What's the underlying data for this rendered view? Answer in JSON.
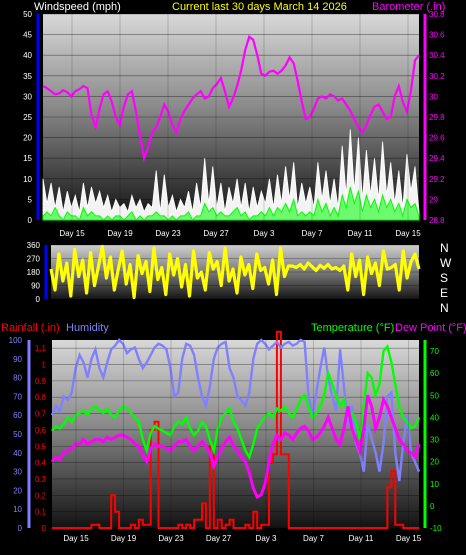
{
  "header": {
    "left_label": "Windspeed (mph)",
    "center_label": "Current last 30 days March 14 2026",
    "right_label": "Barometer (.in)"
  },
  "lower_header": {
    "rainfall_label": "Rainfall (.in)",
    "humidity_label": "Humidity",
    "temperature_label": "Temperature (°F)",
    "dewpoint_label": "Dew Point (°F)"
  },
  "direction_letters": [
    "N",
    "W",
    "S",
    "E",
    "N"
  ],
  "x_ticks": [
    "Day 15",
    "Day 19",
    "Day 23",
    "Day 27",
    "Day 3",
    "Day 7",
    "Day 11",
    "Day 15"
  ],
  "colors": {
    "wind": "#ffffff",
    "gust": "#00ff00",
    "barometer": "#ff00ff",
    "direction": "#ffff00",
    "rain": "#ff0000",
    "humidity": "#8080ff",
    "temperature": "#00ff00",
    "dewpoint": "#ff00ff",
    "wind_axis": "#0000ff",
    "rain_axis": "#ff0000",
    "humidity_axis": "#8080ff",
    "temp_axis": "#00ff00"
  },
  "chart_data": [
    {
      "type": "line",
      "panel": "wind-barometer",
      "x_ticks": [
        "Day 15",
        "Day 19",
        "Day 23",
        "Day 27",
        "Day 3",
        "Day 7",
        "Day 11",
        "Day 15"
      ],
      "y_left": {
        "label": "Windspeed (mph)",
        "ticks": [
          0,
          5,
          10,
          15,
          20,
          25,
          30,
          35,
          40,
          45,
          50
        ],
        "range": [
          0,
          50
        ]
      },
      "y_right": {
        "label": "Barometer (.in)",
        "ticks": [
          28.8,
          29,
          29.2,
          29.4,
          29.6,
          29.8,
          30,
          30.2,
          30.4,
          30.6,
          30.8
        ],
        "range": [
          28.8,
          30.8
        ]
      },
      "series": [
        {
          "name": "Windspeed",
          "axis": "left",
          "values": [
            10,
            4,
            9,
            3,
            8,
            2,
            7,
            3,
            6,
            2,
            9,
            3,
            8,
            4,
            7,
            3,
            6,
            2,
            5,
            3,
            4,
            2,
            6,
            3,
            5,
            2,
            4,
            3,
            12,
            2,
            11,
            3,
            6,
            2,
            5,
            3,
            7,
            2,
            9,
            3,
            15,
            4,
            13,
            3,
            9,
            2,
            8,
            4,
            10,
            3,
            9,
            2,
            8,
            3,
            7,
            4,
            10,
            3,
            11,
            4,
            13,
            5,
            14,
            3,
            9,
            4,
            8,
            3,
            14,
            5,
            12,
            4,
            10,
            3,
            18,
            6,
            22,
            7,
            20,
            5,
            17,
            6,
            15,
            5,
            19,
            6,
            14,
            4,
            12,
            3,
            16,
            7,
            13,
            2
          ]
        },
        {
          "name": "Gust",
          "axis": "left",
          "values": [
            1,
            2,
            1,
            3,
            1,
            0,
            2,
            1,
            1,
            0,
            3,
            1,
            2,
            1,
            1,
            0,
            1,
            0,
            1,
            1,
            0,
            1,
            2,
            0,
            1,
            0,
            1,
            1,
            2,
            1,
            1,
            0,
            1,
            0,
            1,
            1,
            2,
            0,
            1,
            1,
            4,
            2,
            3,
            1,
            2,
            1,
            1,
            2,
            3,
            1,
            2,
            0,
            1,
            1,
            2,
            1,
            3,
            1,
            3,
            2,
            4,
            2,
            5,
            1,
            2,
            1,
            2,
            1,
            5,
            2,
            4,
            1,
            3,
            1,
            6,
            3,
            8,
            4,
            7,
            2,
            6,
            3,
            5,
            2,
            6,
            3,
            5,
            2,
            4,
            1,
            5,
            3,
            4,
            1
          ]
        },
        {
          "name": "Barometer",
          "axis": "right",
          "values": [
            30.1,
            30.08,
            30.05,
            30.02,
            30.03,
            30.06,
            30.04,
            30.0,
            30.05,
            30.07,
            30.1,
            30.08,
            29.82,
            29.7,
            29.88,
            30.02,
            30.05,
            29.95,
            29.8,
            29.72,
            29.9,
            30.02,
            30.05,
            29.85,
            29.62,
            29.4,
            29.5,
            29.65,
            29.7,
            29.8,
            29.92,
            29.85,
            29.72,
            29.65,
            29.78,
            29.86,
            29.92,
            29.98,
            30.02,
            30.05,
            29.98,
            30.0,
            30.08,
            30.12,
            30.18,
            30.05,
            29.9,
            29.98,
            30.1,
            30.25,
            30.45,
            30.58,
            30.55,
            30.4,
            30.22,
            30.2,
            30.24,
            30.25,
            30.22,
            30.25,
            30.3,
            30.38,
            30.32,
            30.15,
            29.95,
            29.78,
            29.8,
            29.88,
            29.98,
            30.0,
            29.98,
            30.02,
            30.0,
            29.96,
            29.98,
            29.92,
            29.86,
            29.78,
            29.7,
            29.65,
            29.72,
            29.82,
            29.9,
            29.92,
            29.85,
            29.78,
            29.8,
            30.0,
            30.1,
            29.95,
            29.85,
            30.05,
            30.35,
            30.4
          ]
        }
      ]
    },
    {
      "type": "line",
      "panel": "wind-direction",
      "y_left": {
        "ticks": [
          0,
          90,
          180,
          270,
          360
        ],
        "range": [
          0,
          360
        ]
      },
      "series": [
        {
          "name": "Wind direction",
          "values": [
            200,
            60,
            300,
            120,
            240,
            20,
            330,
            150,
            260,
            40,
            310,
            90,
            220,
            350,
            140,
            280,
            60,
            200,
            320,
            100,
            230,
            10,
            290,
            170,
            250,
            50,
            340,
            130,
            210,
            30,
            300,
            160,
            270,
            80,
            230,
            20,
            320,
            140,
            180,
            60,
            310,
            200,
            250,
            90,
            340,
            120,
            200,
            40,
            280,
            160,
            230,
            70,
            300,
            190,
            210,
            100,
            260,
            30,
            340,
            150,
            220,
            220,
            210,
            230,
            200,
            240,
            215,
            190,
            225,
            205,
            230,
            200,
            210,
            190,
            220,
            60,
            300,
            150,
            260,
            30,
            280,
            170,
            240,
            90,
            320,
            200,
            210,
            230,
            60,
            320,
            140,
            250,
            300,
            200
          ]
        }
      ]
    },
    {
      "type": "line",
      "panel": "rain-humidity-temperature",
      "x_ticks": [
        "Day 15",
        "Day 19",
        "Day 23",
        "Day 27",
        "Day 3",
        "Day 7",
        "Day 11",
        "Day 15"
      ],
      "y_rain": {
        "label": "Rainfall (.in)",
        "ticks": [
          0,
          0.1,
          0.2,
          0.3,
          0.4,
          0.5,
          0.6,
          0.7,
          0.8,
          0.9,
          1,
          1.1
        ],
        "range": [
          0,
          1.15
        ]
      },
      "y_humidity": {
        "label": "Humidity",
        "ticks": [
          0,
          10,
          20,
          30,
          40,
          50,
          60,
          70,
          80,
          90,
          100
        ],
        "range": [
          0,
          100
        ]
      },
      "y_temp": {
        "label": "Temperature (°F)",
        "ticks": [
          -10,
          0,
          10,
          20,
          30,
          40,
          50,
          60,
          70
        ],
        "range": [
          -10,
          75
        ]
      },
      "series": [
        {
          "name": "Rainfall",
          "axis": "rain",
          "values": [
            0,
            0,
            0,
            0,
            0,
            0,
            0,
            0,
            0,
            0,
            0.02,
            0.02,
            0,
            0,
            0,
            0.2,
            0.1,
            0,
            0,
            0,
            0.02,
            0,
            0.05,
            0.02,
            0.02,
            0.6,
            0.65,
            0,
            0,
            0,
            0,
            0,
            0.02,
            0,
            0.02,
            0,
            0.05,
            0.05,
            0.15,
            0,
            0.5,
            0,
            0.05,
            0,
            0.02,
            0.05,
            0,
            0,
            0,
            0.02,
            0,
            0.1,
            0,
            0.02,
            0.02,
            0.4,
            0.45,
            1.2,
            0.45,
            0.45,
            0,
            0,
            0,
            0,
            0,
            0,
            0,
            0,
            0,
            0,
            0,
            0,
            0,
            0,
            0,
            0,
            0,
            0,
            0,
            0,
            0,
            0,
            0,
            0,
            0,
            0.25,
            0.35,
            0.02,
            0.02,
            0,
            0,
            0,
            0,
            0
          ]
        },
        {
          "name": "Humidity",
          "axis": "humidity",
          "values": [
            60,
            65,
            62,
            70,
            68,
            72,
            85,
            92,
            88,
            80,
            90,
            95,
            85,
            80,
            88,
            95,
            97,
            100,
            98,
            93,
            95,
            96,
            90,
            85,
            88,
            92,
            96,
            98,
            97,
            95,
            85,
            70,
            72,
            90,
            98,
            97,
            92,
            80,
            70,
            65,
            75,
            90,
            96,
            98,
            99,
            85,
            80,
            70,
            68,
            65,
            72,
            90,
            98,
            100,
            98,
            95,
            97,
            99,
            96,
            98,
            99,
            97,
            98,
            100,
            99,
            70,
            60,
            72,
            85,
            96,
            80,
            70,
            62,
            95,
            75,
            55,
            65,
            45,
            40,
            30,
            55,
            48,
            40,
            30,
            45,
            70,
            72,
            40,
            25,
            45,
            60,
            40,
            35,
            30
          ]
        },
        {
          "name": "Temperature",
          "axis": "temp",
          "values": [
            34,
            36,
            35,
            37,
            40,
            38,
            41,
            42,
            43,
            41,
            44,
            45,
            43,
            42,
            44,
            41,
            40,
            43,
            45,
            44,
            42,
            40,
            38,
            30,
            25,
            33,
            36,
            35,
            34,
            33,
            32,
            36,
            38,
            37,
            40,
            35,
            32,
            34,
            38,
            36,
            30,
            25,
            35,
            40,
            42,
            44,
            38,
            35,
            30,
            25,
            22,
            28,
            35,
            38,
            40,
            42,
            40,
            44,
            43,
            45,
            42,
            40,
            44,
            48,
            50,
            45,
            40,
            42,
            45,
            50,
            60,
            55,
            50,
            45,
            48,
            40,
            42,
            38,
            30,
            45,
            60,
            58,
            50,
            55,
            70,
            72,
            65,
            55,
            45,
            40,
            38,
            35,
            36,
            40
          ]
        },
        {
          "name": "Dew Point",
          "axis": "temp",
          "values": [
            20,
            22,
            21,
            24,
            25,
            26,
            28,
            28,
            30,
            28,
            29,
            30,
            30,
            29,
            31,
            30,
            31,
            32,
            32,
            31,
            30,
            28,
            27,
            23,
            20,
            26,
            28,
            27,
            27,
            26,
            25,
            27,
            29,
            29,
            30,
            27,
            25,
            27,
            29,
            27,
            24,
            18,
            22,
            26,
            29,
            31,
            27,
            25,
            22,
            20,
            15,
            8,
            4,
            5,
            10,
            20,
            28,
            32,
            30,
            33,
            32,
            30,
            33,
            35,
            36,
            34,
            30,
            31,
            33,
            36,
            40,
            35,
            30,
            28,
            35,
            45,
            35,
            30,
            25,
            35,
            50,
            45,
            35,
            40,
            48,
            45,
            40,
            35,
            30,
            28,
            25,
            24,
            22,
            28
          ]
        }
      ]
    }
  ]
}
